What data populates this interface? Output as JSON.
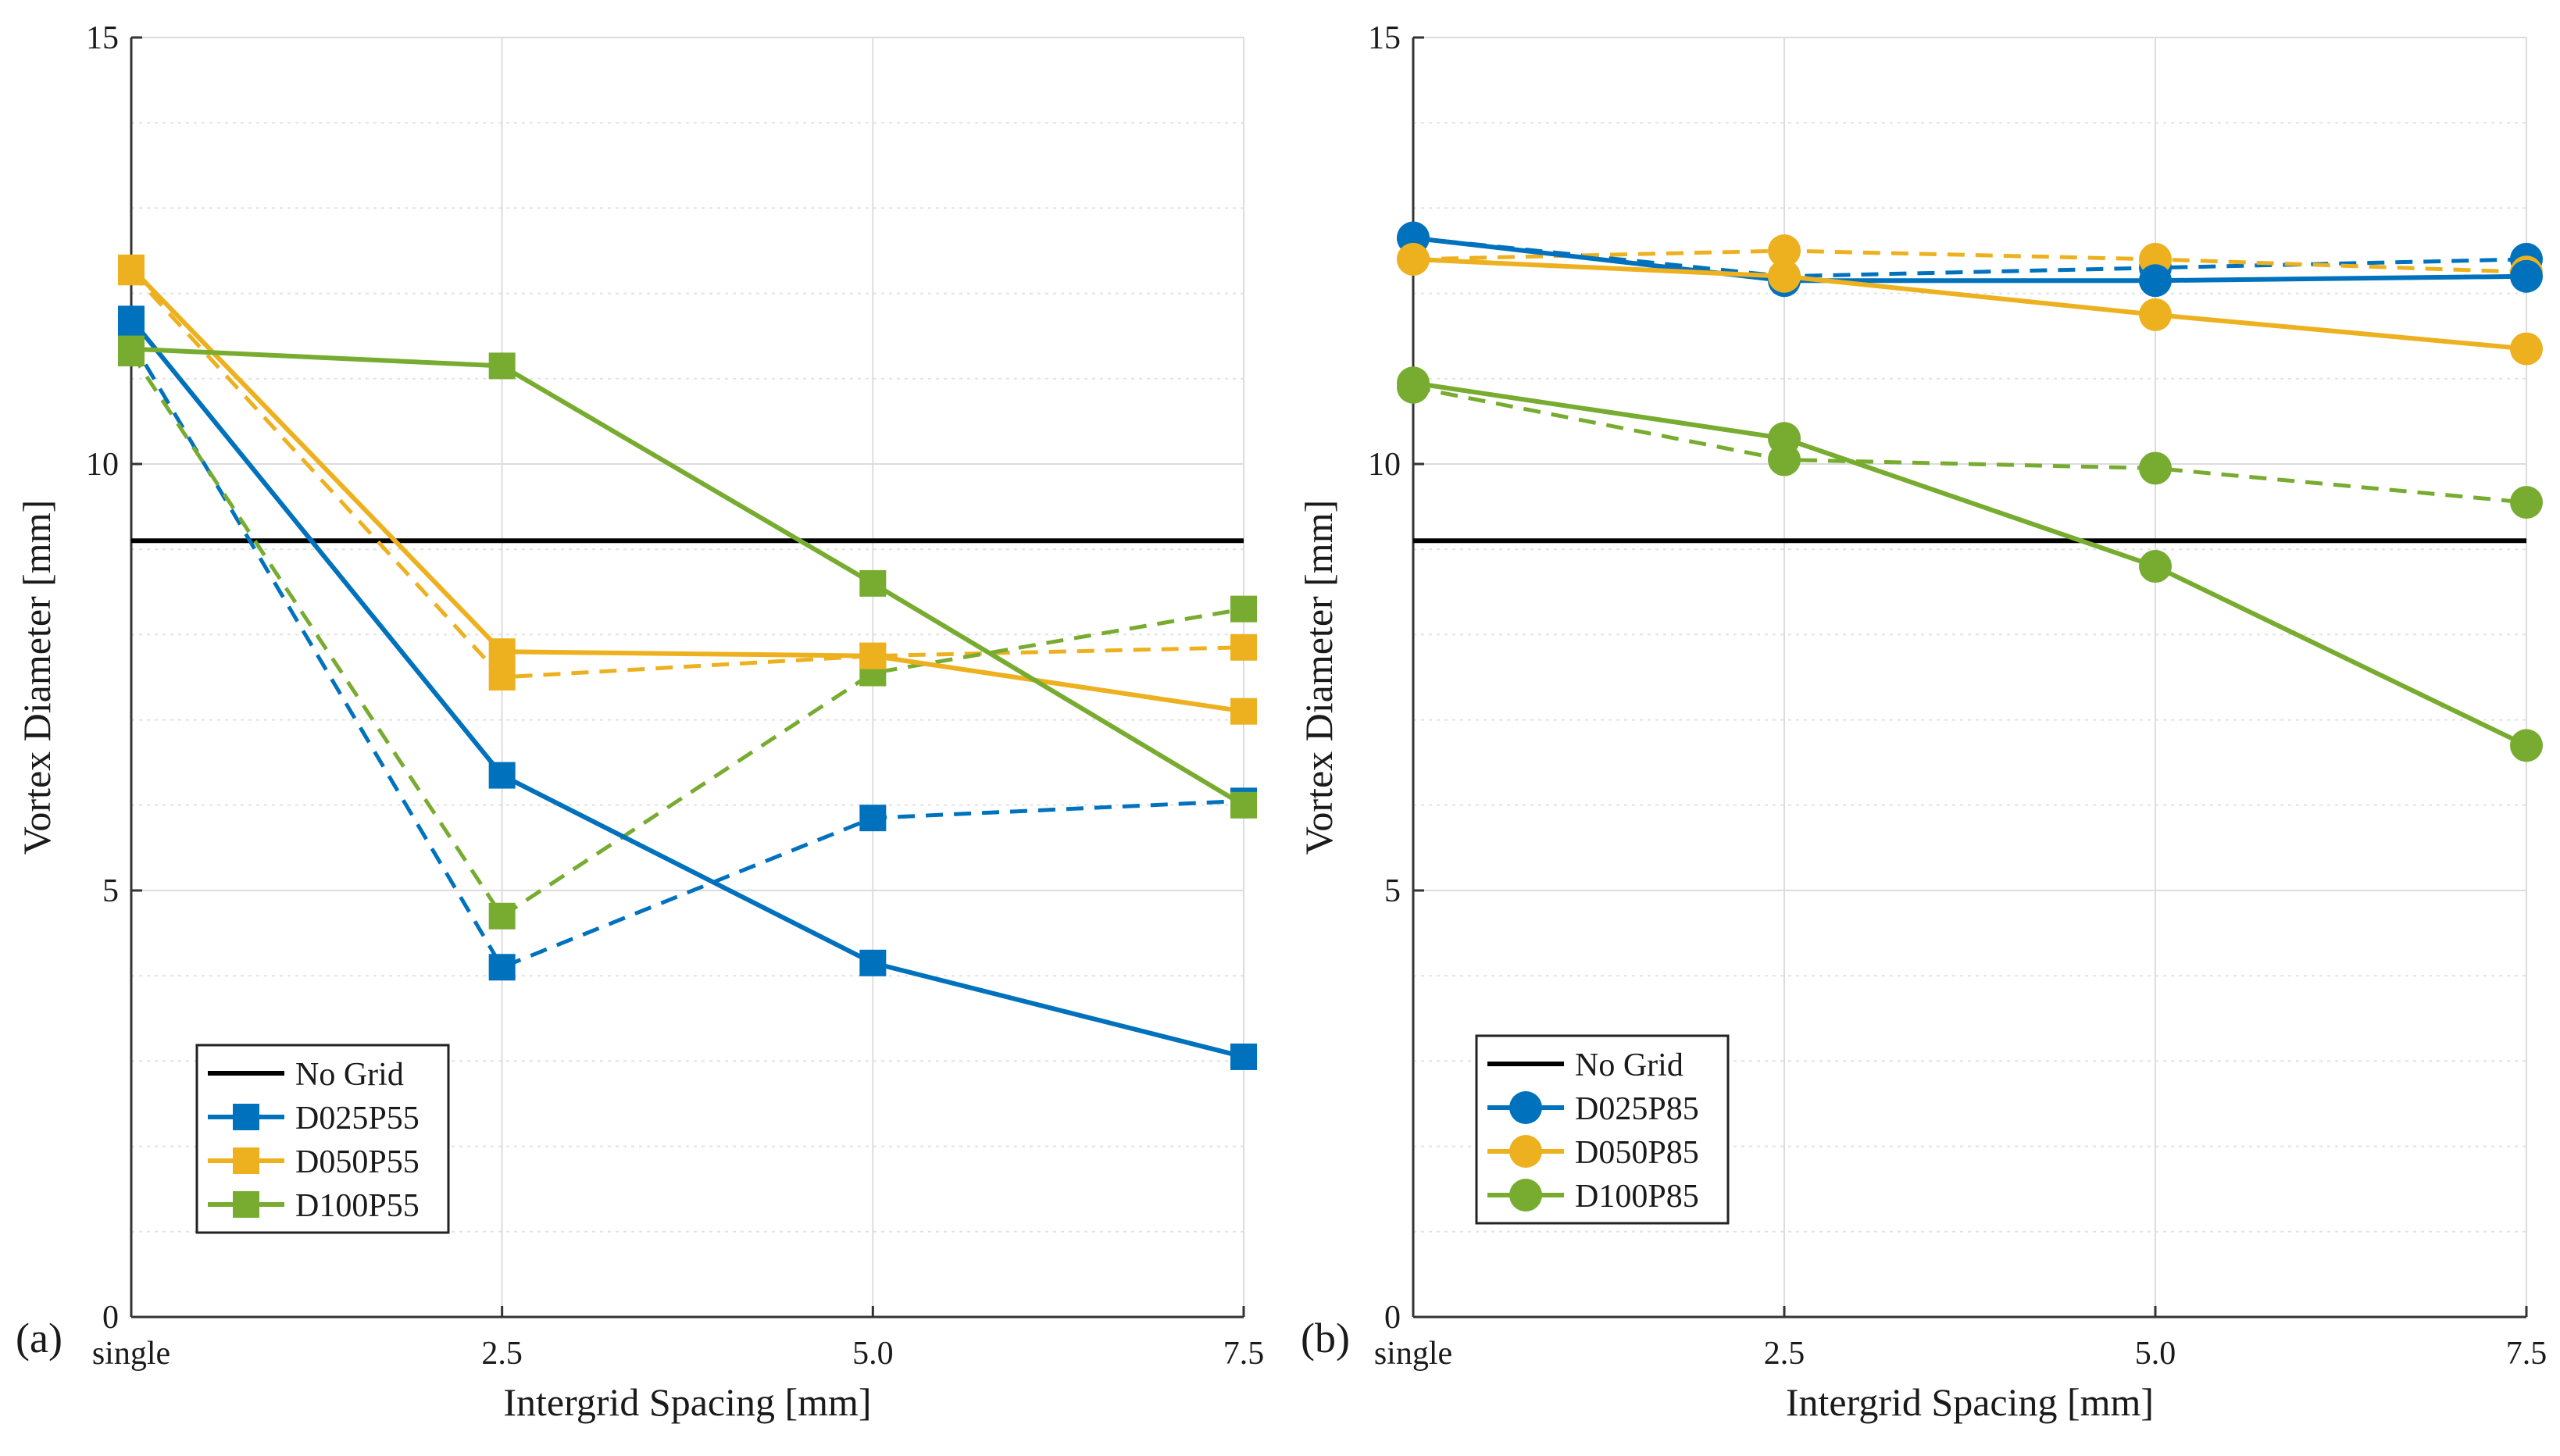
{
  "colors": {
    "no_grid": "#000000",
    "D025": "#0072BD",
    "D050": "#EDB120",
    "D100": "#77AC30",
    "grid": "#dcdcdc",
    "axis": "#333333"
  },
  "chart_data": [
    {
      "type": "line",
      "panel_label": "(a)",
      "xlabel": "Intergrid Spacing [mm]",
      "ylabel": "Vortex Diameter [mm]",
      "categories": [
        "single",
        "2.5",
        "5.0",
        "7.5"
      ],
      "ylim": [
        0,
        15
      ],
      "yticks": [
        "0",
        "5",
        "10",
        "15"
      ],
      "y_minor_step": 1,
      "grid": true,
      "legend_position": "bottom-left",
      "marker": "square",
      "reference_line": {
        "name": "No Grid",
        "value": 9.1
      },
      "series": [
        {
          "name": "D025P55",
          "color_key": "D025",
          "values": [
            11.7,
            6.35,
            4.15,
            3.05
          ]
        },
        {
          "name": "D050P55",
          "color_key": "D050",
          "values": [
            12.3,
            7.8,
            7.75,
            7.1
          ]
        },
        {
          "name": "D100P55",
          "color_key": "D100",
          "values": [
            11.35,
            11.15,
            8.6,
            6.0
          ]
        }
      ],
      "dashed_series": [
        {
          "color_key": "D025",
          "values": [
            11.45,
            4.1,
            5.85,
            6.05
          ]
        },
        {
          "color_key": "D050",
          "values": [
            12.25,
            7.5,
            7.75,
            7.85
          ]
        },
        {
          "color_key": "D100",
          "values": [
            11.3,
            4.7,
            7.55,
            8.3
          ]
        }
      ]
    },
    {
      "type": "line",
      "panel_label": "(b)",
      "xlabel": "Intergrid Spacing [mm]",
      "ylabel": "Vortex Diameter [mm]",
      "categories": [
        "single",
        "2.5",
        "5.0",
        "7.5"
      ],
      "ylim": [
        0,
        15
      ],
      "yticks": [
        "0",
        "5",
        "10",
        "15"
      ],
      "y_minor_step": 1,
      "grid": true,
      "legend_position": "bottom-left",
      "marker": "circle",
      "reference_line": {
        "name": "No Grid",
        "value": 9.1
      },
      "series": [
        {
          "name": "D025P85",
          "color_key": "D025",
          "values": [
            12.65,
            12.15,
            12.15,
            12.2
          ]
        },
        {
          "name": "D050P85",
          "color_key": "D050",
          "values": [
            12.4,
            12.2,
            11.75,
            11.35
          ]
        },
        {
          "name": "D100P85",
          "color_key": "D100",
          "values": [
            10.95,
            10.3,
            8.8,
            6.7
          ]
        }
      ],
      "dashed_series": [
        {
          "color_key": "D025",
          "values": [
            12.65,
            12.2,
            12.3,
            12.4
          ]
        },
        {
          "color_key": "D050",
          "values": [
            12.4,
            12.5,
            12.4,
            12.25
          ]
        },
        {
          "color_key": "D100",
          "values": [
            10.9,
            10.05,
            9.95,
            9.55
          ]
        }
      ]
    }
  ]
}
